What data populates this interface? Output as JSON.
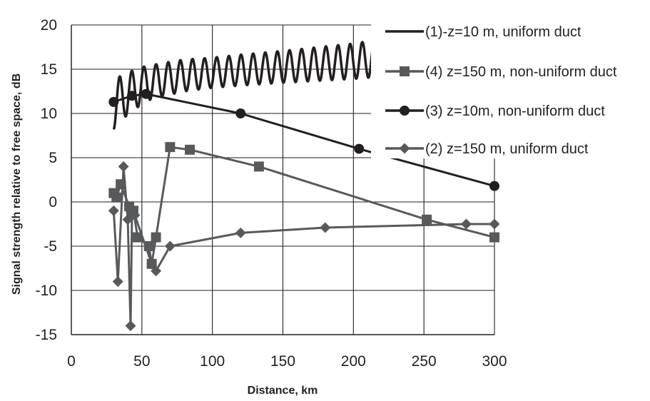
{
  "chart_data": {
    "type": "line",
    "xlabel": "Distance, km",
    "ylabel": "Signal strength relative to free space, dB",
    "xlim": [
      0,
      300
    ],
    "ylim": [
      -15,
      20
    ],
    "x_ticks": [
      0,
      50,
      100,
      150,
      200,
      250,
      300
    ],
    "y_ticks": [
      -15,
      -10,
      -5,
      0,
      5,
      10,
      15,
      20
    ],
    "grid": true,
    "legend_position": "top-right",
    "series": [
      {
        "name": "(1)-z=10 m,  uniform duct",
        "color": "#231f20",
        "marker": "none",
        "oscillating": true,
        "x_start": 30,
        "x_end": 215,
        "trend": [
          [
            30,
            11.0
          ],
          [
            40,
            12.3
          ],
          [
            55,
            13.5
          ],
          [
            80,
            14.3
          ],
          [
            120,
            14.9
          ],
          [
            160,
            15.4
          ],
          [
            200,
            15.9
          ],
          [
            215,
            16.2
          ]
        ],
        "amplitude": [
          [
            30,
            2.8
          ],
          [
            45,
            2.2
          ],
          [
            60,
            1.9
          ],
          [
            100,
            1.7
          ],
          [
            150,
            1.8
          ],
          [
            200,
            2.0
          ],
          [
            215,
            2.1
          ]
        ],
        "period_km": 8.6
      },
      {
        "name": "(4) z=150 m, non-uniform duct",
        "color": "#58595b",
        "marker": "square",
        "x": [
          30,
          32,
          35,
          41,
          43,
          44,
          47,
          55,
          57,
          60,
          70,
          84,
          133,
          252,
          300
        ],
        "y": [
          1.0,
          0.5,
          2.0,
          -0.5,
          -1.0,
          -1.0,
          -4.0,
          -5.0,
          -7.0,
          -4.0,
          6.2,
          5.9,
          4.0,
          -2.0,
          -4.0
        ]
      },
      {
        "name": "(3) z=10m, non-uniform duct",
        "color": "#231f20",
        "marker": "circle",
        "x": [
          30,
          43,
          53,
          120,
          204,
          300
        ],
        "y": [
          11.3,
          12.0,
          12.2,
          10.0,
          6.0,
          1.8
        ]
      },
      {
        "name": "(2) z=150 m, uniform duct",
        "color": "#58595b",
        "marker": "diamond",
        "x": [
          30,
          33,
          37,
          40,
          42,
          43,
          45,
          57,
          60,
          70,
          120,
          180,
          280,
          300
        ],
        "y": [
          -1.0,
          -9.0,
          4.0,
          -2.0,
          -14.0,
          -1.5,
          -1.5,
          -7.0,
          -7.8,
          -5.0,
          -3.5,
          -2.9,
          -2.5,
          -2.5
        ]
      }
    ]
  }
}
